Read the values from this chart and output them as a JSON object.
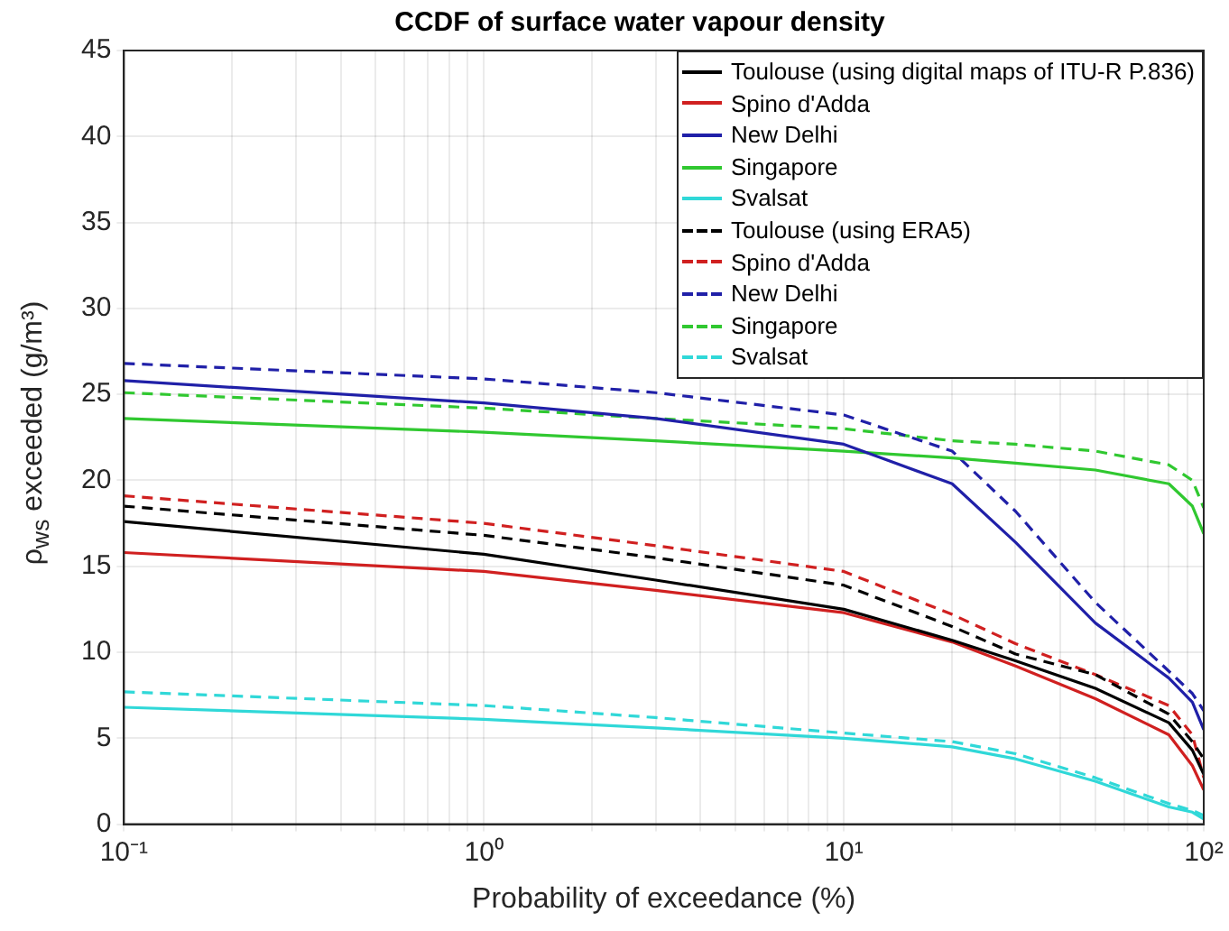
{
  "chart_data": {
    "type": "line",
    "title": "CCDF of surface water vapour density",
    "xlabel": "Probability of exceedance (%)",
    "ylabel": "ρ$_{ws}$ exceeded (g/m³)",
    "x": [
      0.1,
      1,
      3,
      10,
      20,
      30,
      50,
      80,
      93,
      100
    ],
    "log": "x",
    "xlim": [
      0.1,
      100
    ],
    "xticks": [
      {
        "value": 0.1,
        "label": "10⁻¹"
      },
      {
        "value": 0.2,
        "label": null
      },
      {
        "value": 0.3,
        "label": null
      },
      {
        "value": 0.4,
        "label": null
      },
      {
        "value": 0.5,
        "label": null
      },
      {
        "value": 0.6,
        "label": null
      },
      {
        "value": 0.7,
        "label": null
      },
      {
        "value": 0.8,
        "label": null
      },
      {
        "value": 0.9,
        "label": null
      },
      {
        "value": 1,
        "label": "10⁰"
      },
      {
        "value": 2,
        "label": null
      },
      {
        "value": 3,
        "label": null
      },
      {
        "value": 4,
        "label": null
      },
      {
        "value": 5,
        "label": null
      },
      {
        "value": 6,
        "label": null
      },
      {
        "value": 7,
        "label": null
      },
      {
        "value": 8,
        "label": null
      },
      {
        "value": 9,
        "label": null
      },
      {
        "value": 10,
        "label": "10¹"
      },
      {
        "value": 20,
        "label": null
      },
      {
        "value": 30,
        "label": null
      },
      {
        "value": 40,
        "label": null
      },
      {
        "value": 50,
        "label": null
      },
      {
        "value": 60,
        "label": null
      },
      {
        "value": 70,
        "label": null
      },
      {
        "value": 80,
        "label": null
      },
      {
        "value": 90,
        "label": null
      },
      {
        "value": 100,
        "label": "10²"
      }
    ],
    "ylim": [
      0,
      45
    ],
    "yticks": [
      0,
      5,
      10,
      15,
      20,
      25,
      30,
      35,
      40,
      45
    ],
    "grid": true,
    "legend": "top right",
    "marker": "none",
    "series": [
      {
        "name": "Toulouse (using digital maps of ITU-R P.836)",
        "color": "#000000",
        "line_style": "solid",
        "values": [
          17.6,
          15.7,
          14.2,
          12.5,
          10.7,
          9.5,
          7.9,
          5.9,
          4.3,
          2.9
        ]
      },
      {
        "name": "Spino d'Adda",
        "color": "#d02020",
        "line_style": "solid",
        "values": [
          15.8,
          14.7,
          13.6,
          12.3,
          10.6,
          9.2,
          7.3,
          5.2,
          3.4,
          2.0
        ]
      },
      {
        "name": "New Delhi",
        "color": "#2020a8",
        "line_style": "solid",
        "values": [
          25.8,
          24.5,
          23.6,
          22.1,
          19.8,
          16.4,
          11.7,
          8.5,
          7.1,
          5.5
        ]
      },
      {
        "name": "Singapore",
        "color": "#30c830",
        "line_style": "solid",
        "values": [
          23.6,
          22.8,
          22.3,
          21.7,
          21.3,
          21.0,
          20.6,
          19.8,
          18.5,
          16.9
        ]
      },
      {
        "name": "Svalsat",
        "color": "#30d8d8",
        "line_style": "solid",
        "values": [
          6.8,
          6.1,
          5.6,
          5.0,
          4.5,
          3.8,
          2.5,
          1.0,
          0.7,
          0.3
        ]
      },
      {
        "name": "Toulouse (using ERA5)",
        "color": "#000000",
        "line_style": "dashed",
        "values": [
          18.5,
          16.8,
          15.5,
          13.9,
          11.5,
          9.9,
          8.7,
          6.4,
          4.8,
          3.8
        ]
      },
      {
        "name": "Spino d'Adda",
        "color": "#d02020",
        "line_style": "dashed",
        "values": [
          19.1,
          17.5,
          16.2,
          14.7,
          12.2,
          10.5,
          8.7,
          6.9,
          5.2,
          2.7
        ]
      },
      {
        "name": "New Delhi",
        "color": "#2020a8",
        "line_style": "dashed",
        "values": [
          26.8,
          25.9,
          25.1,
          23.8,
          21.7,
          18.2,
          12.9,
          8.9,
          7.6,
          6.6
        ]
      },
      {
        "name": "Singapore",
        "color": "#30c830",
        "line_style": "dashed",
        "values": [
          25.1,
          24.2,
          23.6,
          23.0,
          22.3,
          22.1,
          21.7,
          20.9,
          20.0,
          18.4
        ]
      },
      {
        "name": "Svalsat",
        "color": "#30d8d8",
        "line_style": "dashed",
        "values": [
          7.7,
          6.9,
          6.2,
          5.3,
          4.8,
          4.1,
          2.7,
          1.2,
          0.8,
          0.5
        ]
      }
    ]
  }
}
